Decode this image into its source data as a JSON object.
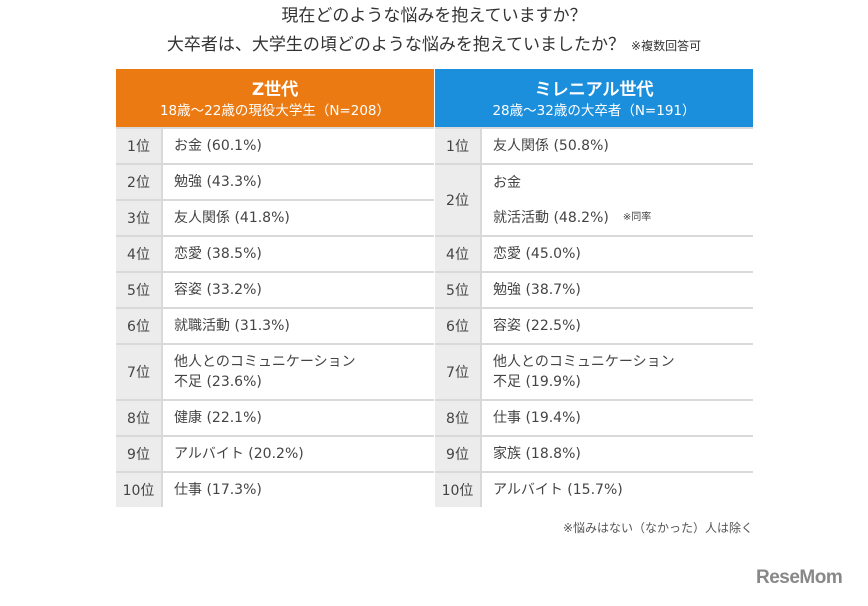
{
  "title": {
    "line1": "現在どのような悩みを抱えていますか？",
    "line2": "大卒者は、大学生の頃どのような悩みを抱えていましたか？",
    "note": "※複数回答可"
  },
  "z_generation": {
    "heading": "Z世代",
    "subheading": "18歳～22歳の現役大学生（N=208）",
    "color": "#ec7a12",
    "rows": [
      {
        "rank": "1位",
        "items": [
          "お金 (60.1%)"
        ]
      },
      {
        "rank": "2位",
        "items": [
          "勉強 (43.3%)"
        ]
      },
      {
        "rank": "3位",
        "items": [
          "友人関係 (41.8%)"
        ]
      },
      {
        "rank": "4位",
        "items": [
          "恋愛 (38.5%)"
        ]
      },
      {
        "rank": "5位",
        "items": [
          "容姿 (33.2%)"
        ]
      },
      {
        "rank": "6位",
        "items": [
          "就職活動 (31.3%)"
        ]
      },
      {
        "rank": "7位",
        "items": [
          "他人とのコミュニケーション\n不足 (23.6%)"
        ]
      },
      {
        "rank": "8位",
        "items": [
          "健康 (22.1%)"
        ]
      },
      {
        "rank": "9位",
        "items": [
          "アルバイト (20.2%)"
        ]
      },
      {
        "rank": "10位",
        "items": [
          "仕事 (17.3%)"
        ]
      }
    ]
  },
  "millennial": {
    "heading": "ミレニアル世代",
    "subheading": "28歳～32歳の大卒者（N=191）",
    "color": "#1c8fdc",
    "rows": [
      {
        "rank": "1位",
        "items": [
          "友人関係 (50.8%)"
        ]
      },
      {
        "rank": "2位",
        "items": [
          "お金",
          "就活活動 (48.2%)"
        ],
        "tie_note": "※同率"
      },
      {
        "rank": "4位",
        "items": [
          "恋愛 (45.0%)"
        ]
      },
      {
        "rank": "5位",
        "items": [
          "勉強 (38.7%)"
        ]
      },
      {
        "rank": "6位",
        "items": [
          "容姿 (22.5%)"
        ]
      },
      {
        "rank": "7位",
        "items": [
          "他人とのコミュニケーション\n不足 (19.9%)"
        ]
      },
      {
        "rank": "8位",
        "items": [
          "仕事 (19.4%)"
        ]
      },
      {
        "rank": "9位",
        "items": [
          "家族 (18.8%)"
        ]
      },
      {
        "rank": "10位",
        "items": [
          "アルバイト (15.7%)"
        ]
      }
    ]
  },
  "footnote": "※悩みはない（なかった）人は除く",
  "logo": "ReseMom"
}
